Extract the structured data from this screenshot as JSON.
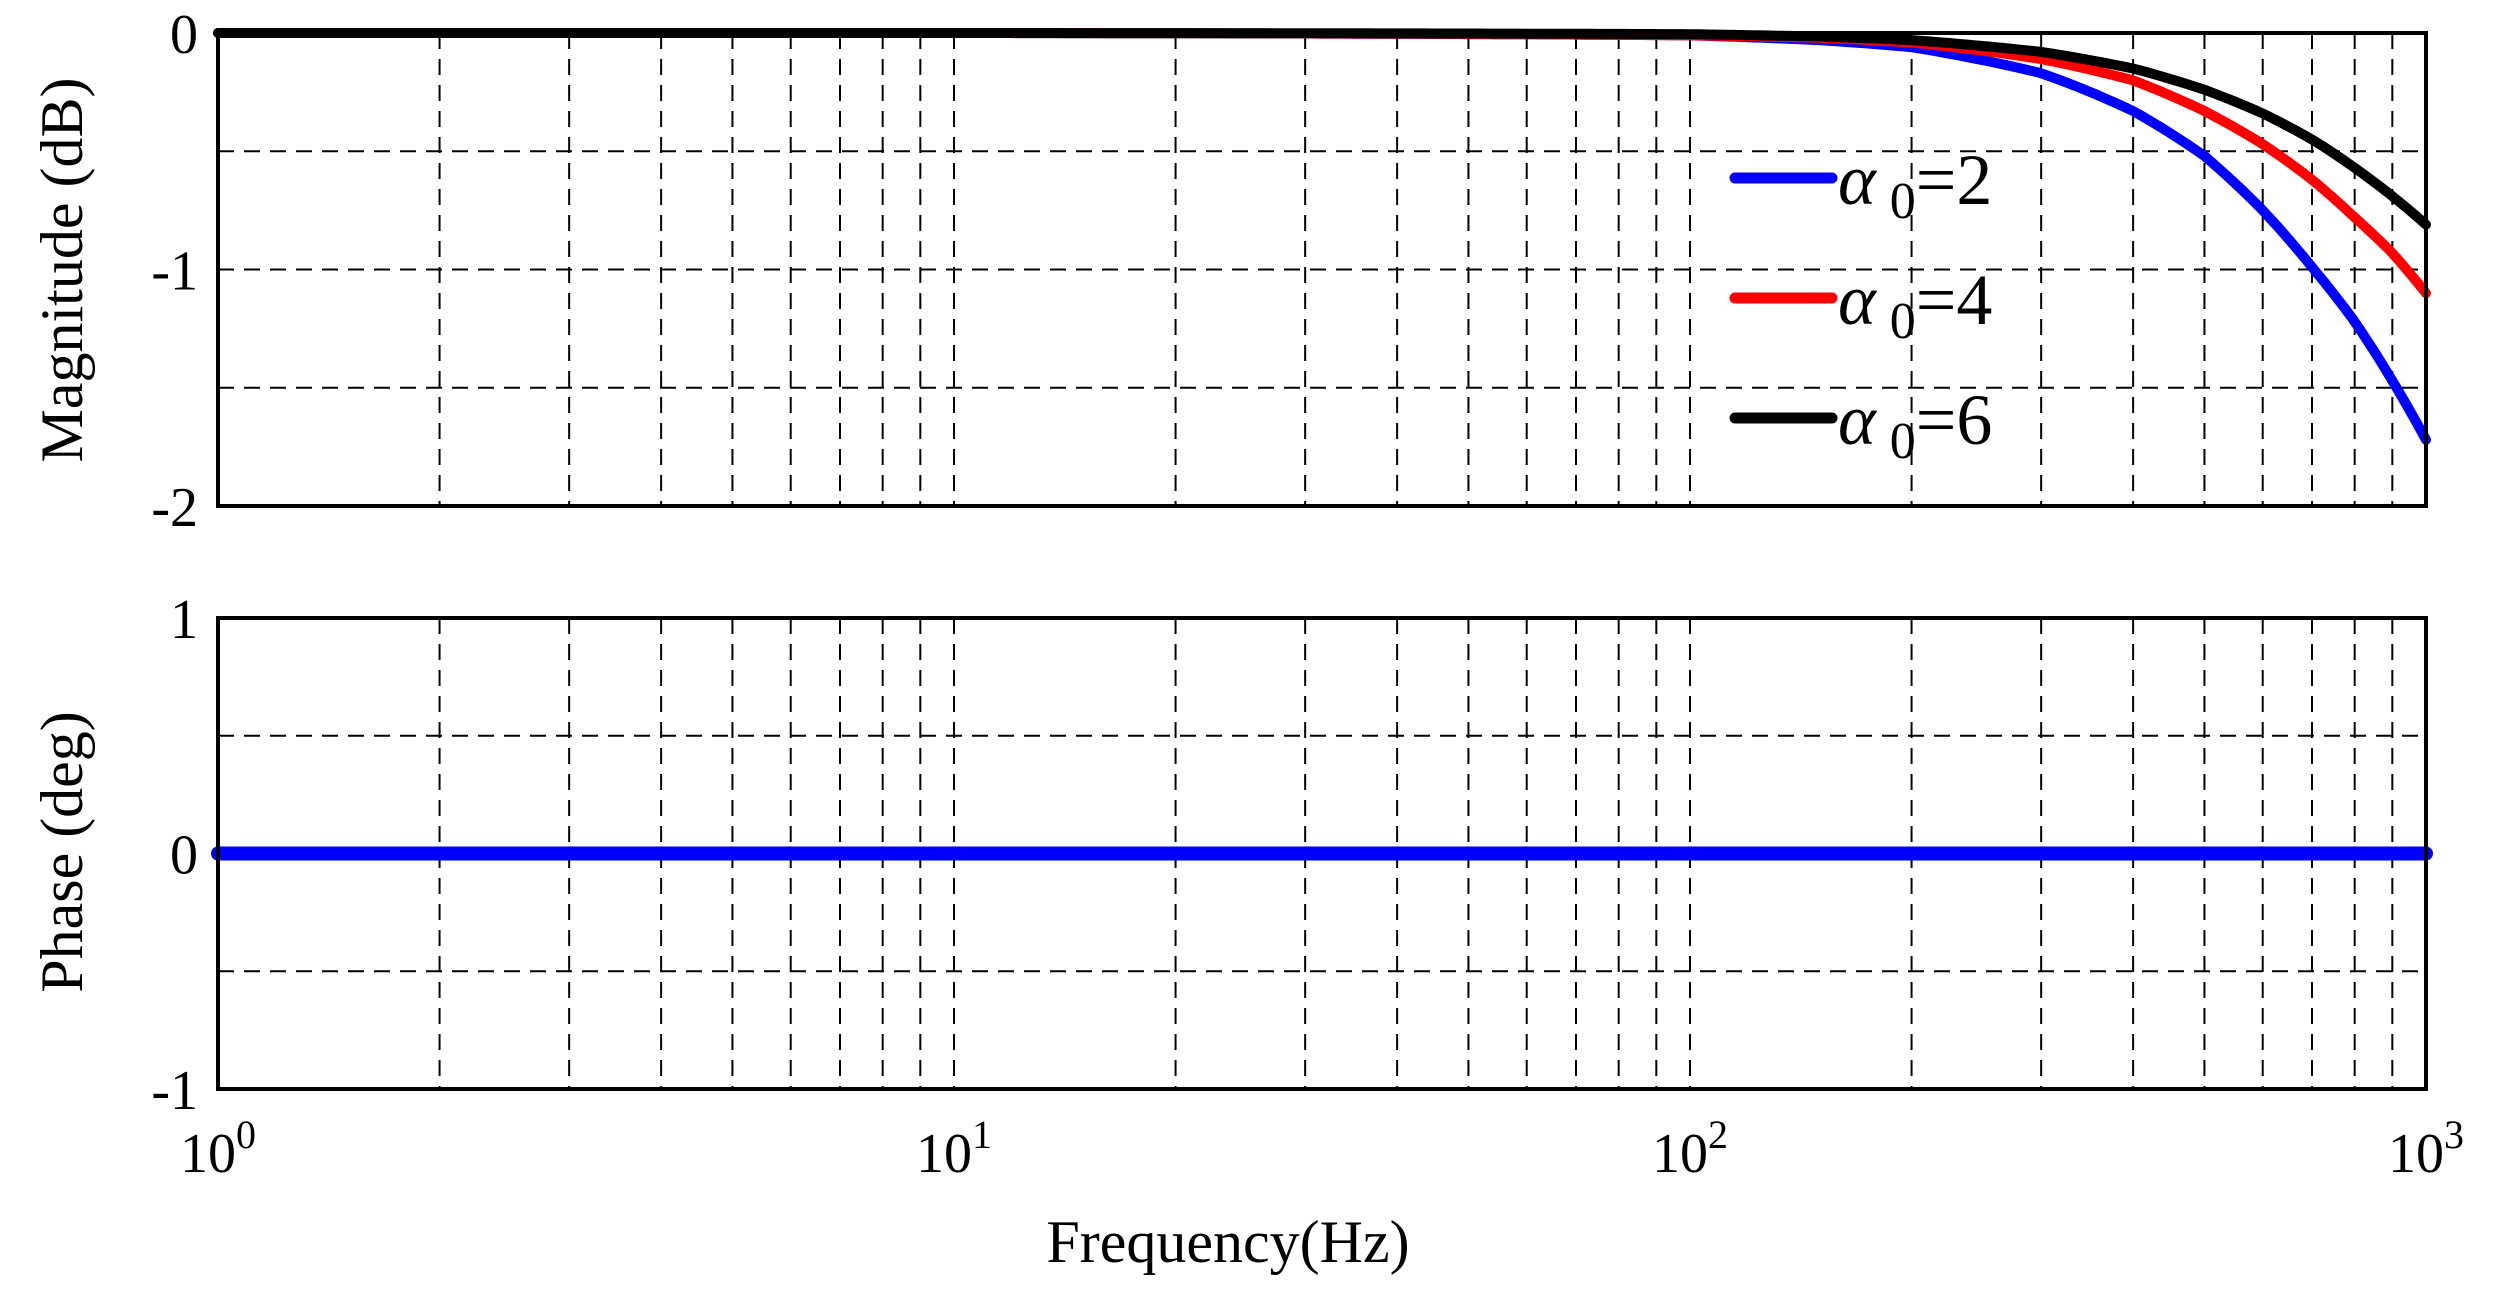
{
  "chart_data": [
    {
      "type": "line",
      "panel": "magnitude",
      "ylabel": "Magnitude (dB)",
      "xscale": "log",
      "xlim": [
        1,
        1000
      ],
      "ylim": [
        -2,
        0
      ],
      "yticks": [
        {
          "value": 0,
          "label": "0"
        },
        {
          "value": -1,
          "label": "-1"
        },
        {
          "value": -2,
          "label": "-2"
        }
      ],
      "grid": true,
      "legend_position": "top-right",
      "series": [
        {
          "name": "α 0=2",
          "legend_symbol": "α",
          "legend_sub": "0",
          "legend_suffix": "=2",
          "color": "#0000ff",
          "x": [
            1,
            10,
            100,
            150,
            200,
            300,
            400,
            500,
            600,
            700,
            800,
            900,
            1000
          ],
          "y": [
            0,
            0,
            -0.01,
            -0.03,
            -0.06,
            -0.17,
            -0.33,
            -0.52,
            -0.75,
            -0.99,
            -1.22,
            -1.47,
            -1.72
          ]
        },
        {
          "name": "α 0=4",
          "legend_symbol": "α",
          "legend_sub": "0",
          "legend_suffix": "=4",
          "color": "#ff0000",
          "x": [
            1,
            10,
            100,
            150,
            200,
            300,
            400,
            500,
            600,
            700,
            800,
            900,
            1000
          ],
          "y": [
            0,
            0,
            -0.01,
            -0.02,
            -0.04,
            -0.11,
            -0.2,
            -0.33,
            -0.47,
            -0.62,
            -0.78,
            -0.93,
            -1.1
          ]
        },
        {
          "name": "α 0=6",
          "legend_symbol": "α",
          "legend_sub": "0",
          "legend_suffix": "=6",
          "color": "#000000",
          "x": [
            1,
            10,
            100,
            150,
            200,
            300,
            400,
            500,
            600,
            700,
            800,
            900,
            1000
          ],
          "y": [
            0,
            0,
            -0.005,
            -0.015,
            -0.03,
            -0.08,
            -0.15,
            -0.24,
            -0.34,
            -0.45,
            -0.57,
            -0.69,
            -0.81
          ]
        }
      ]
    },
    {
      "type": "line",
      "panel": "phase",
      "ylabel": "Phase (deg)",
      "xlabel": "Frequency(Hz)",
      "xscale": "log",
      "xlim": [
        1,
        1000
      ],
      "ylim": [
        -1,
        1
      ],
      "yticks": [
        {
          "value": 1,
          "label": "1"
        },
        {
          "value": 0,
          "label": "0"
        },
        {
          "value": -1,
          "label": "-1"
        }
      ],
      "xticks": [
        {
          "value": 1,
          "base": "10",
          "exp": "0"
        },
        {
          "value": 10,
          "base": "10",
          "exp": "1"
        },
        {
          "value": 100,
          "base": "10",
          "exp": "2"
        },
        {
          "value": 1000,
          "base": "10",
          "exp": "3"
        }
      ],
      "grid": true,
      "series": [
        {
          "color": "#0000ff",
          "x": [
            1,
            1000
          ],
          "y": [
            0,
            0
          ]
        }
      ]
    }
  ]
}
